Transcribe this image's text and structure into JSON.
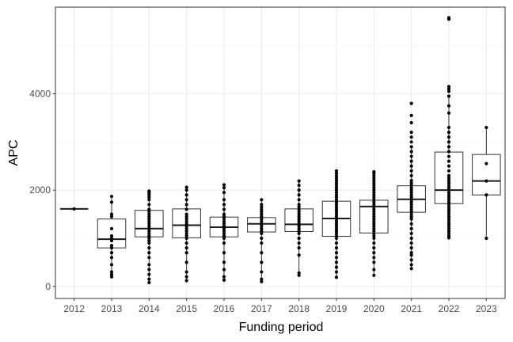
{
  "chart_data": {
    "type": "box",
    "xlabel": "Funding period",
    "ylabel": "APC",
    "categories": [
      "2012",
      "2013",
      "2014",
      "2015",
      "2016",
      "2017",
      "2018",
      "2019",
      "2020",
      "2021",
      "2022",
      "2023"
    ],
    "ylim": [
      -250,
      5800
    ],
    "yticks": [
      0,
      2000,
      4000
    ],
    "grid": true,
    "boxes": [
      {
        "category": "2012",
        "q1": 1610,
        "median": 1610,
        "q3": 1610,
        "whisker_low": 1610,
        "whisker_high": 1610
      },
      {
        "category": "2013",
        "q1": 800,
        "median": 980,
        "q3": 1400,
        "whisker_low": 200,
        "whisker_high": 1870
      },
      {
        "category": "2014",
        "q1": 1030,
        "median": 1200,
        "q3": 1580,
        "whisker_low": 80,
        "whisker_high": 1980
      },
      {
        "category": "2015",
        "q1": 1010,
        "median": 1270,
        "q3": 1610,
        "whisker_low": 120,
        "whisker_high": 2060
      },
      {
        "category": "2016",
        "q1": 1030,
        "median": 1230,
        "q3": 1440,
        "whisker_low": 130,
        "whisker_high": 2110
      },
      {
        "category": "2017",
        "q1": 1130,
        "median": 1300,
        "q3": 1430,
        "whisker_low": 100,
        "whisker_high": 1800
      },
      {
        "category": "2018",
        "q1": 1140,
        "median": 1290,
        "q3": 1610,
        "whisker_low": 230,
        "whisker_high": 2190
      },
      {
        "category": "2019",
        "q1": 1040,
        "median": 1410,
        "q3": 1770,
        "whisker_low": 190,
        "whisker_high": 2400
      },
      {
        "category": "2020",
        "q1": 1110,
        "median": 1660,
        "q3": 1790,
        "whisker_low": 230,
        "whisker_high": 2380
      },
      {
        "category": "2021",
        "q1": 1540,
        "median": 1810,
        "q3": 2090,
        "whisker_low": 370,
        "whisker_high": 2920
      },
      {
        "category": "2022",
        "q1": 1720,
        "median": 2000,
        "q3": 2790,
        "whisker_low": 1010,
        "whisker_high": 3950
      },
      {
        "category": "2023",
        "q1": 1900,
        "median": 2190,
        "q3": 2740,
        "whisker_low": 1000,
        "whisker_high": 3300
      }
    ],
    "points": [
      {
        "category": "2012",
        "values": [
          1610
        ]
      },
      {
        "category": "2013",
        "values": [
          200,
          250,
          300,
          450,
          600,
          700,
          800,
          850,
          950,
          1000,
          1050,
          1200,
          1450,
          1500,
          1750,
          1870
        ]
      },
      {
        "category": "2014",
        "values": [
          80,
          150,
          250,
          350,
          450,
          600,
          700,
          800,
          900,
          950,
          1000,
          1050,
          1100,
          1150,
          1200,
          1250,
          1300,
          1350,
          1400,
          1450,
          1500,
          1550,
          1600,
          1700,
          1800,
          1850,
          1900,
          1930,
          1960,
          1980
        ]
      },
      {
        "category": "2015",
        "values": [
          120,
          200,
          300,
          500,
          700,
          800,
          900,
          1000,
          1050,
          1100,
          1150,
          1200,
          1250,
          1300,
          1350,
          1400,
          1450,
          1500,
          1600,
          1700,
          1800,
          1900,
          2000,
          2060
        ]
      },
      {
        "category": "2016",
        "values": [
          130,
          200,
          350,
          500,
          700,
          900,
          1000,
          1050,
          1100,
          1150,
          1200,
          1250,
          1300,
          1350,
          1400,
          1450,
          1500,
          1600,
          1700,
          1800,
          1950,
          2050,
          2110
        ]
      },
      {
        "category": "2017",
        "values": [
          100,
          150,
          300,
          500,
          700,
          900,
          1000,
          1100,
          1150,
          1200,
          1250,
          1300,
          1350,
          1400,
          1450,
          1500,
          1550,
          1600,
          1650,
          1700,
          1800
        ]
      },
      {
        "category": "2018",
        "values": [
          230,
          280,
          650,
          800,
          900,
          1000,
          1100,
          1150,
          1200,
          1250,
          1300,
          1350,
          1400,
          1450,
          1500,
          1550,
          1600,
          1650,
          1700,
          1800,
          1900,
          2000,
          2100,
          2190
        ]
      },
      {
        "category": "2019",
        "values": [
          190,
          300,
          400,
          500,
          600,
          700,
          800,
          900,
          1000,
          1050,
          1100,
          1150,
          1200,
          1250,
          1300,
          1350,
          1400,
          1450,
          1500,
          1550,
          1600,
          1650,
          1700,
          1750,
          1800,
          1850,
          1900,
          1950,
          2000,
          2050,
          2100,
          2150,
          2200,
          2250,
          2300,
          2350,
          2400
        ]
      },
      {
        "category": "2020",
        "values": [
          230,
          350,
          500,
          600,
          700,
          800,
          900,
          1000,
          1050,
          1100,
          1150,
          1200,
          1250,
          1300,
          1350,
          1400,
          1450,
          1500,
          1550,
          1600,
          1650,
          1700,
          1750,
          1800,
          1850,
          1900,
          1950,
          2000,
          2050,
          2100,
          2150,
          2200,
          2250,
          2300,
          2350,
          2380
        ]
      },
      {
        "category": "2021",
        "values": [
          370,
          450,
          550,
          650,
          700,
          800,
          900,
          1000,
          1100,
          1200,
          1300,
          1400,
          1450,
          1500,
          1550,
          1600,
          1650,
          1700,
          1750,
          1800,
          1850,
          1900,
          1950,
          2000,
          2050,
          2100,
          2150,
          2200,
          2300,
          2400,
          2500,
          2600,
          2700,
          2800,
          2900,
          3000,
          3100,
          3200,
          3400,
          3550,
          3800
        ]
      },
      {
        "category": "2022",
        "values": [
          1010,
          1050,
          1100,
          1150,
          1200,
          1250,
          1300,
          1350,
          1400,
          1450,
          1500,
          1550,
          1600,
          1650,
          1700,
          1750,
          1800,
          1850,
          1900,
          1950,
          2000,
          2050,
          2100,
          2150,
          2200,
          2250,
          2300,
          2400,
          2500,
          2600,
          2700,
          2800,
          2900,
          3000,
          3100,
          3200,
          3300,
          3600,
          3750,
          3950,
          4050,
          4100,
          4150,
          5550,
          5580
        ]
      },
      {
        "category": "2023",
        "values": [
          1000,
          1900,
          2190,
          2550,
          3300
        ]
      }
    ]
  }
}
